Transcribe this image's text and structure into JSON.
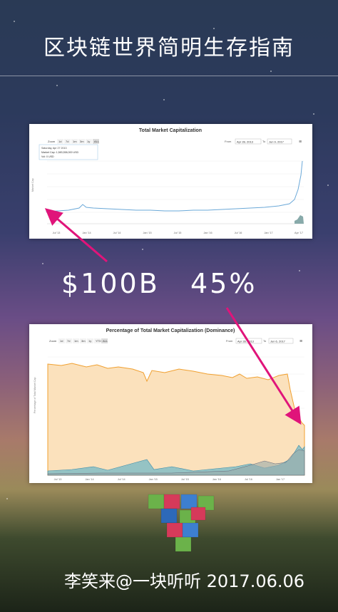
{
  "title": "区块链世界简明生存指南",
  "chart1": {
    "title": "Total Market Capitalization",
    "zoom": [
      "Zoom",
      "1d",
      "7d",
      "1m",
      "3m",
      "1y",
      "ALL"
    ],
    "from": "From",
    "from_date": "Apr 28, 2013",
    "to": "To",
    "to_date": "Jun 9, 2017",
    "tooltip": [
      "Saturday, Apr 27 2013",
      "Market Cap: 1,583,538,000 USD",
      "Vol: 0 USD"
    ],
    "ylabel": "Market Cap",
    "xticks": [
      "Jul '13",
      "Jan '14",
      "Jul '14",
      "Jan '15",
      "Jul '15",
      "Jan '16",
      "Jul '16",
      "Jan '17",
      "Apr '17"
    ]
  },
  "chart2": {
    "title": "Percentage of Total Market Capitalization (Dominance)",
    "zoom": [
      "Zoom",
      "1d",
      "7d",
      "1m",
      "3m",
      "1y",
      "YTD",
      "ALL"
    ],
    "from": "From",
    "from_date": "Apr 28, 2013",
    "to": "To",
    "to_date": "Jun 6, 2017",
    "ylabel": "Percentage of Total Market Cap",
    "xticks": [
      "Jul '13",
      "Jan '14",
      "Jul '14",
      "Jan '15",
      "Jul '15",
      "Jan '16",
      "Jul '16",
      "Jan '17"
    ]
  },
  "cap_label": "$100B",
  "dom_label": "45%",
  "credit": "李笑来@一块听听 2017.06.06",
  "colors": {
    "arrow": "#e0147a",
    "line": "#6aa8d8",
    "orange": "#f0a030",
    "orange_fill": "#fbe1bc"
  }
}
